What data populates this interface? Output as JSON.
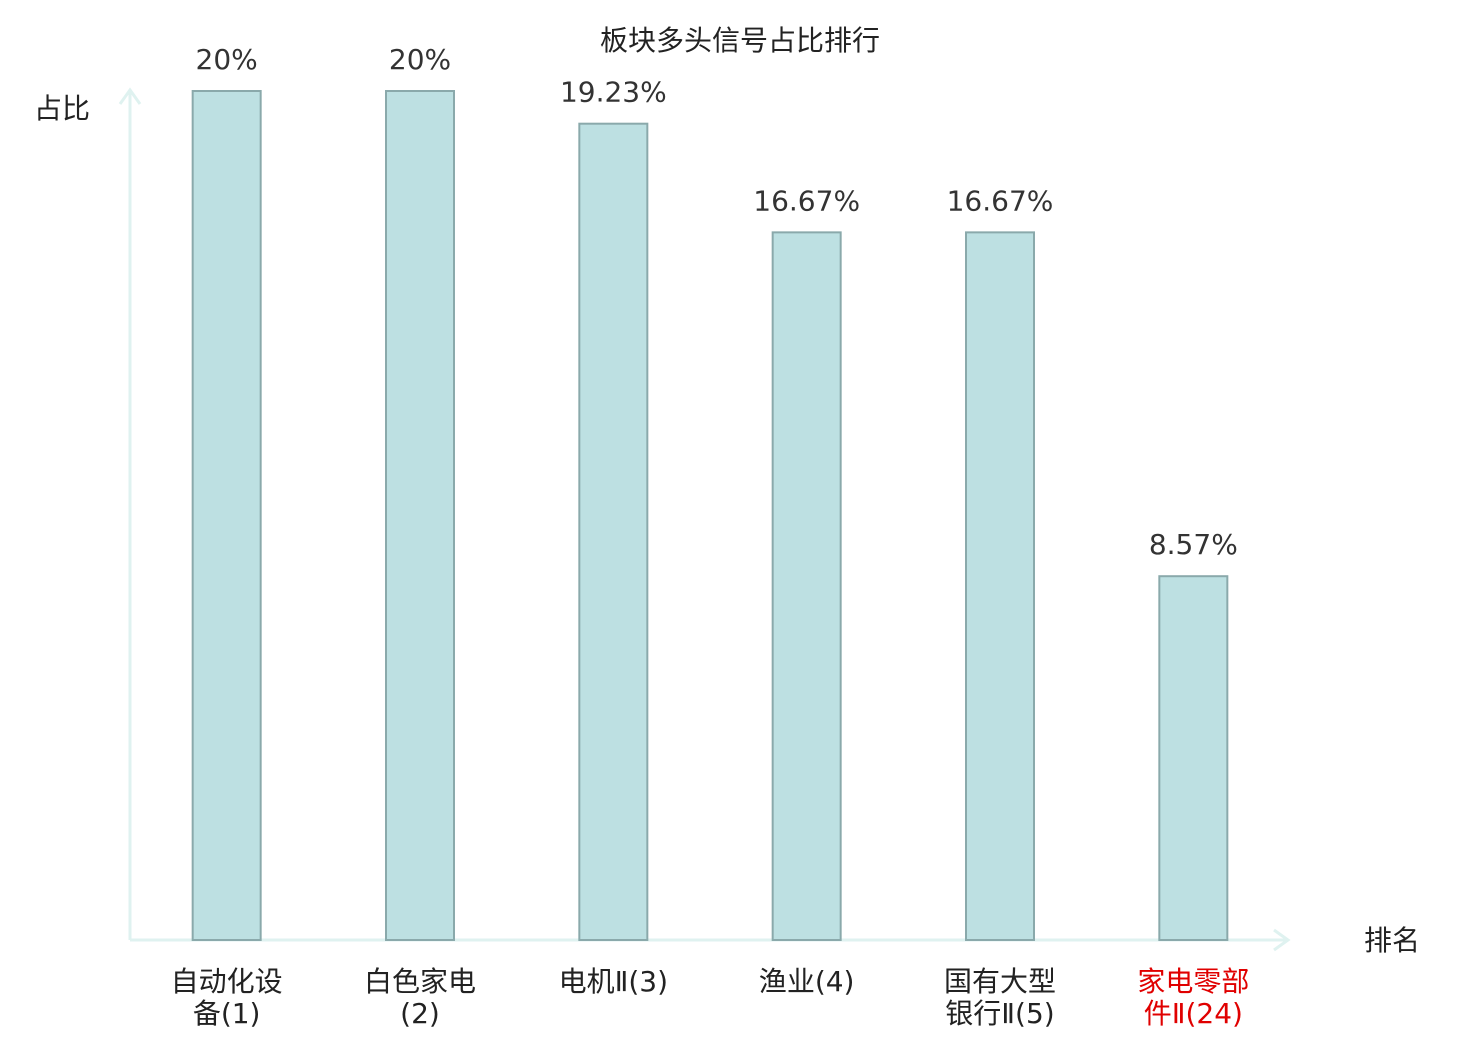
{
  "chart_data": {
    "type": "bar",
    "title": "板块多头信号占比排行",
    "y_label": "占比",
    "x_label": "排名",
    "categories": [
      "自动化设备(1)",
      "白色家电(2)",
      "电机Ⅱ(3)",
      "渔业(4)",
      "国有大型银行Ⅱ(5)",
      "家电零部件Ⅱ(24)"
    ],
    "values": [
      20,
      20,
      19.23,
      16.67,
      16.67,
      8.57
    ],
    "value_labels": [
      "20%",
      "20%",
      "19.23%",
      "16.67%",
      "16.67%",
      "8.57%"
    ],
    "color": "#bde0e2",
    "edge_color": "#8aa9ab",
    "label_colors": [
      "#222222",
      "#222222",
      "#222222",
      "#222222",
      "#222222",
      "#e00000"
    ],
    "ylim": [
      0,
      20
    ],
    "grid": false
  }
}
